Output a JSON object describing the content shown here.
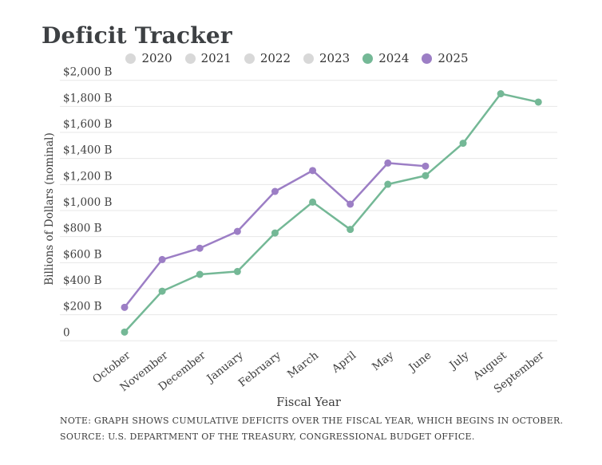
{
  "page": {
    "title": "Deficit Tracker"
  },
  "legend": {
    "items": [
      {
        "label": "2020",
        "color": "#d8d8d8",
        "active": false
      },
      {
        "label": "2021",
        "color": "#d8d8d8",
        "active": false
      },
      {
        "label": "2022",
        "color": "#d8d8d8",
        "active": false
      },
      {
        "label": "2023",
        "color": "#d8d8d8",
        "active": false
      },
      {
        "label": "2024",
        "color": "#74b896",
        "active": true
      },
      {
        "label": "2025",
        "color": "#9c7ec5",
        "active": true
      }
    ]
  },
  "chart_data": {
    "type": "line",
    "title": "Deficit Tracker",
    "xlabel": "Fiscal Year",
    "ylabel": "Billions of Dollars (nominal)",
    "categories": [
      "October",
      "November",
      "December",
      "January",
      "February",
      "March",
      "April",
      "May",
      "June",
      "July",
      "August",
      "September"
    ],
    "ylim": [
      0,
      2000
    ],
    "yticks": [
      {
        "value": 0,
        "label": "0"
      },
      {
        "value": 200,
        "label": "$200 B"
      },
      {
        "value": 400,
        "label": "$400 B"
      },
      {
        "value": 600,
        "label": "$600 B"
      },
      {
        "value": 800,
        "label": "$800 B"
      },
      {
        "value": 1000,
        "label": "$1,000 B"
      },
      {
        "value": 1200,
        "label": "$1,200 B"
      },
      {
        "value": 1400,
        "label": "$1,400 B"
      },
      {
        "value": 1600,
        "label": "$1,600 B"
      },
      {
        "value": 1800,
        "label": "$1,800 B"
      },
      {
        "value": 2000,
        "label": "$2,000 B"
      }
    ],
    "grid": true,
    "legend_position": "top",
    "series": [
      {
        "name": "2024",
        "color": "#74b896",
        "values": [
          67,
          381,
          510,
          532,
          828,
          1065,
          855,
          1202,
          1268,
          1517,
          1897,
          1833
        ]
      },
      {
        "name": "2025",
        "color": "#9c7ec5",
        "values": [
          257,
          624,
          711,
          840,
          1147,
          1307,
          1049,
          1365,
          1341
        ]
      }
    ],
    "colors": {
      "gridline": "#e7e7e7",
      "inactive_legend": "#d8d8d8",
      "text": "#3f3f3f"
    }
  },
  "footer": {
    "note": "NOTE: GRAPH SHOWS CUMULATIVE DEFICITS OVER THE FISCAL YEAR, WHICH BEGINS IN OCTOBER.",
    "source": "SOURCE: U.S. DEPARTMENT OF THE TREASURY, CONGRESSIONAL BUDGET OFFICE."
  }
}
